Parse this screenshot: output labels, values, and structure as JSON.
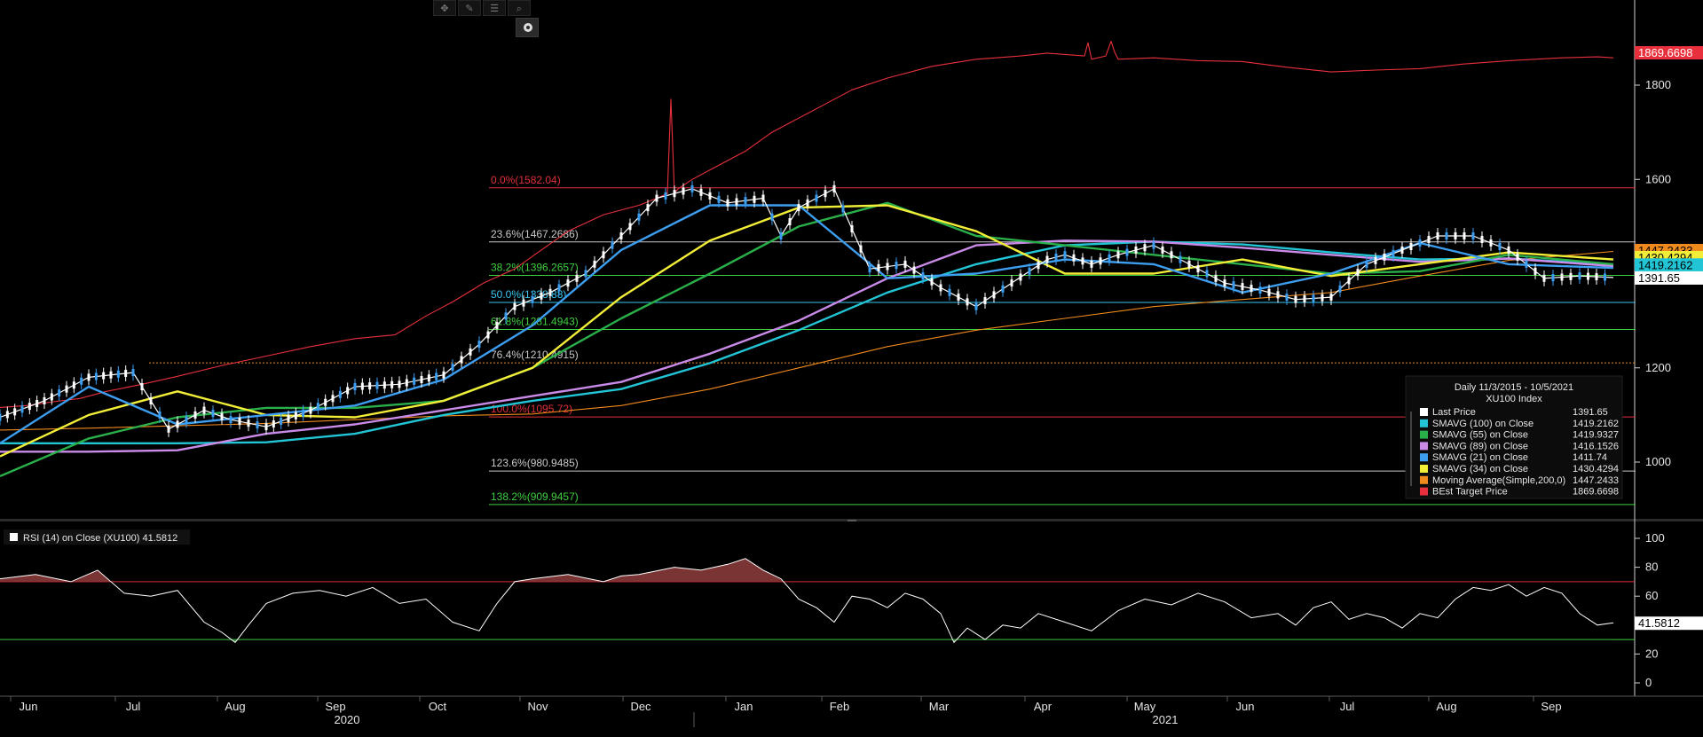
{
  "toolbar": {
    "icons": [
      "crosshair-icon",
      "draw-icon",
      "menu-icon",
      "zoom-icon"
    ],
    "glyphs": [
      "✥",
      "✎",
      "☰",
      "⌕"
    ],
    "camera_icon": "camera-icon"
  },
  "legend": {
    "title": "Daily 11/3/2015 - 10/5/2021",
    "subtitle": "XU100 Index",
    "items": [
      {
        "label": "Last Price",
        "value": "1391.65",
        "color": "#ffffff"
      },
      {
        "label": "SMAVG (100)  on Close",
        "value": "1419.2162",
        "color": "#22c5d6"
      },
      {
        "label": "SMAVG (55)  on Close",
        "value": "1419.9327",
        "color": "#2ab04a"
      },
      {
        "label": "SMAVG (89)  on Close",
        "value": "1416.1526",
        "color": "#c98ae8"
      },
      {
        "label": "SMAVG (21)  on Close",
        "value": "1411.74",
        "color": "#3d9ef0"
      },
      {
        "label": "SMAVG (34)  on Close",
        "value": "1430.4294",
        "color": "#f2ee38"
      },
      {
        "label": "Moving Average(Simple,200,0)",
        "value": "1447.2433",
        "color": "#f08a1c"
      },
      {
        "label": "BEst Target Price",
        "value": "1869.6698",
        "color": "#e8303c"
      }
    ]
  },
  "rsi_legend": {
    "label": "RSI (14)  on Close (XU100) 41.5812",
    "color": "#ffffff"
  },
  "chart_data": [
    {
      "type": "line",
      "title": "XU100 Index",
      "ylim": [
        900,
        1930
      ],
      "yticks": [
        1000,
        1200,
        1400,
        1600,
        1800
      ],
      "ytick_labels": [
        "1000",
        "1200",
        "1400",
        "1600",
        "1800"
      ],
      "x_month_labels": [
        "Jun",
        "Jul",
        "Aug",
        "Sep",
        "Oct",
        "Nov",
        "Dec",
        "Jan",
        "Feb",
        "Mar",
        "Apr",
        "May",
        "Jun",
        "Jul",
        "Aug",
        "Sep"
      ],
      "x_year_labels": [
        "2020",
        "2021"
      ],
      "fibonacci": [
        {
          "label": "0.0%(1582.04)",
          "value": 1582.04,
          "color": "#e0303a",
          "text_color": "#e0303a"
        },
        {
          "label": "23.6%(1467.2686)",
          "value": 1467.2686,
          "color": "#c8c8c8",
          "text_color": "#c8c8c8"
        },
        {
          "label": "38.2%(1396.2657)",
          "value": 1396.2657,
          "color": "#3fcf3f",
          "text_color": "#3fcf3f"
        },
        {
          "label": "50.0%(1338.88)",
          "value": 1338.88,
          "color": "#38c6ef",
          "text_color": "#38c6ef"
        },
        {
          "label": "61.8%(1281.4943)",
          "value": 1281.4943,
          "color": "#3fcf3f",
          "text_color": "#3fcf3f"
        },
        {
          "label": "76.4%(1210.4915)",
          "value": 1210.4915,
          "color": "#e0303a",
          "text_color": "#c8c8c8",
          "dashed": true
        },
        {
          "label": "100.0%(1095.72)",
          "value": 1095.72,
          "color": "#e0303a",
          "text_color": "#e0303a"
        },
        {
          "label": "123.6%(980.9485)",
          "value": 980.9485,
          "color": "#c8c8c8",
          "text_color": "#c8c8c8"
        },
        {
          "label": "138.2%(909.9457)",
          "value": 909.9457,
          "color": "#3fcf3f",
          "text_color": "#3fcf3f"
        }
      ],
      "right_tags": [
        {
          "label": "1869.6698",
          "value": 1869.67,
          "bg": "#e8303c",
          "fg": "#ffffff"
        },
        {
          "label": "1447.2433",
          "value": 1447.24,
          "bg": "#f08a1c",
          "fg": "#000000"
        },
        {
          "label": "1430.4294",
          "value": 1430.43,
          "bg": "#f2ee38",
          "fg": "#000000"
        },
        {
          "label": "1419.2162",
          "value": 1419.22,
          "bg": "#22c5d6",
          "fg": "#000000"
        },
        {
          "label": "1391.65",
          "value": 1391.65,
          "bg": "#ffffff",
          "fg": "#000000"
        }
      ],
      "series": [
        {
          "name": "BEst Target Price",
          "color": "#e8303c",
          "x": [
            0,
            30,
            60,
            90,
            120,
            160,
            200,
            250,
            300,
            350,
            400,
            445,
            480,
            510,
            545,
            580,
            610,
            640,
            680,
            720,
            740,
            752,
            756,
            760,
            764,
            780,
            800,
            840,
            870,
            900,
            930,
            960,
            1000,
            1050,
            1100,
            1150,
            1180,
            1222,
            1226,
            1230,
            1246,
            1252,
            1256,
            1260,
            1300,
            1350,
            1400,
            1450,
            1500,
            1550,
            1600,
            1650,
            1700,
            1760,
            1800,
            1818
          ],
          "values": [
            1116,
            1120,
            1128,
            1135,
            1150,
            1165,
            1182,
            1205,
            1225,
            1245,
            1262,
            1270,
            1310,
            1340,
            1380,
            1410,
            1450,
            1490,
            1525,
            1545,
            1560,
            1570,
            1770,
            1570,
            1580,
            1600,
            1620,
            1660,
            1700,
            1730,
            1760,
            1790,
            1815,
            1840,
            1855,
            1862,
            1868,
            1862,
            1890,
            1855,
            1862,
            1893,
            1870,
            1855,
            1858,
            1852,
            1850,
            1838,
            1828,
            1832,
            1835,
            1845,
            1852,
            1858,
            1860,
            1858
          ]
        },
        {
          "name": "Moving Average(Simple,200,0)",
          "color": "#f08a1c",
          "x": [
            0,
            100,
            200,
            300,
            400,
            500,
            600,
            700,
            800,
            900,
            1000,
            1100,
            1200,
            1300,
            1400,
            1500,
            1600,
            1700,
            1818
          ],
          "values": [
            1068,
            1072,
            1077,
            1082,
            1090,
            1098,
            1102,
            1120,
            1155,
            1200,
            1245,
            1280,
            1305,
            1330,
            1345,
            1360,
            1395,
            1428,
            1447
          ]
        },
        {
          "name": "SMAVG (100)  on Close",
          "color": "#22c5d6",
          "x": [
            0,
            100,
            200,
            300,
            400,
            500,
            600,
            700,
            800,
            900,
            1000,
            1100,
            1200,
            1300,
            1400,
            1500,
            1600,
            1700,
            1818
          ],
          "values": [
            1040,
            1040,
            1040,
            1042,
            1060,
            1100,
            1130,
            1155,
            1210,
            1280,
            1360,
            1420,
            1460,
            1468,
            1462,
            1445,
            1430,
            1432,
            1419
          ]
        },
        {
          "name": "SMAVG (89)  on Close",
          "color": "#c98ae8",
          "x": [
            0,
            100,
            200,
            300,
            400,
            500,
            600,
            700,
            800,
            900,
            1000,
            1100,
            1200,
            1300,
            1400,
            1500,
            1600,
            1700,
            1818
          ],
          "values": [
            1022,
            1022,
            1025,
            1060,
            1080,
            1110,
            1140,
            1170,
            1230,
            1300,
            1390,
            1460,
            1470,
            1468,
            1455,
            1440,
            1425,
            1432,
            1416
          ]
        },
        {
          "name": "SMAVG (55)  on Close",
          "color": "#2ab04a",
          "x": [
            0,
            100,
            200,
            300,
            400,
            500,
            600,
            700,
            800,
            900,
            1000,
            1100,
            1200,
            1300,
            1400,
            1500,
            1600,
            1700,
            1818
          ],
          "values": [
            970,
            1050,
            1095,
            1115,
            1115,
            1130,
            1200,
            1305,
            1400,
            1500,
            1550,
            1480,
            1460,
            1440,
            1420,
            1400,
            1405,
            1440,
            1420
          ]
        },
        {
          "name": "SMAVG (34)  on Close",
          "color": "#f2ee38",
          "x": [
            0,
            100,
            200,
            300,
            400,
            500,
            600,
            700,
            800,
            900,
            1000,
            1100,
            1200,
            1300,
            1400,
            1500,
            1600,
            1700,
            1818
          ],
          "values": [
            1012,
            1100,
            1150,
            1100,
            1095,
            1130,
            1200,
            1350,
            1470,
            1540,
            1545,
            1490,
            1400,
            1400,
            1430,
            1395,
            1420,
            1445,
            1430
          ]
        },
        {
          "name": "SMAVG (21)  on Close",
          "color": "#3d9ef0",
          "x": [
            0,
            100,
            200,
            300,
            400,
            500,
            600,
            700,
            800,
            900,
            1000,
            1100,
            1200,
            1300,
            1400,
            1500,
            1600,
            1700,
            1818
          ],
          "values": [
            1040,
            1160,
            1080,
            1100,
            1120,
            1175,
            1290,
            1450,
            1545,
            1545,
            1390,
            1400,
            1430,
            1420,
            1360,
            1400,
            1465,
            1420,
            1412
          ]
        },
        {
          "name": "Last Price",
          "color": "#ffffff",
          "x": [
            0,
            50,
            100,
            150,
            190,
            230,
            260,
            300,
            350,
            400,
            450,
            500,
            540,
            580,
            620,
            660,
            700,
            740,
            780,
            820,
            860,
            880,
            900,
            940,
            980,
            1020,
            1060,
            1100,
            1140,
            1180,
            1200,
            1230,
            1260,
            1300,
            1340,
            1380,
            1420,
            1460,
            1500,
            1540,
            1580,
            1620,
            1660,
            1700,
            1740,
            1780,
            1818
          ],
          "values": [
            1095,
            1130,
            1180,
            1190,
            1070,
            1110,
            1090,
            1075,
            1110,
            1160,
            1165,
            1185,
            1250,
            1330,
            1360,
            1400,
            1480,
            1560,
            1580,
            1550,
            1560,
            1480,
            1540,
            1580,
            1410,
            1420,
            1370,
            1330,
            1380,
            1430,
            1440,
            1420,
            1440,
            1460,
            1420,
            1380,
            1365,
            1345,
            1350,
            1420,
            1450,
            1480,
            1480,
            1450,
            1390,
            1395,
            1391.65
          ]
        }
      ]
    },
    {
      "type": "line",
      "title": "RSI (14)  on Close (XU100)",
      "ylim": [
        -10,
        108
      ],
      "yticks": [
        0,
        20,
        40,
        60,
        80,
        100
      ],
      "ytick_labels": [
        "0",
        "20",
        "40",
        "60",
        "80",
        "100"
      ],
      "levels": [
        {
          "value": 70,
          "color": "#e0303a"
        },
        {
          "value": 30,
          "color": "#3fcf3f"
        }
      ],
      "right_tags": [
        {
          "label": "41.5812",
          "value": 41.5812,
          "bg": "#ffffff",
          "fg": "#000000"
        }
      ],
      "series": [
        {
          "name": "RSI (14)",
          "color": "#ffffff",
          "x": [
            0,
            40,
            80,
            110,
            140,
            170,
            200,
            230,
            250,
            265,
            280,
            300,
            330,
            360,
            390,
            420,
            450,
            480,
            510,
            540,
            560,
            580,
            600,
            640,
            680,
            700,
            720,
            760,
            790,
            820,
            840,
            860,
            880,
            900,
            920,
            940,
            960,
            980,
            1000,
            1020,
            1040,
            1060,
            1075,
            1090,
            1110,
            1130,
            1150,
            1170,
            1200,
            1230,
            1260,
            1290,
            1320,
            1350,
            1380,
            1410,
            1440,
            1460,
            1480,
            1500,
            1520,
            1540,
            1560,
            1580,
            1600,
            1620,
            1640,
            1660,
            1680,
            1700,
            1720,
            1740,
            1760,
            1780,
            1800,
            1818
          ],
          "values": [
            72,
            75,
            70,
            78,
            62,
            60,
            64,
            42,
            35,
            28,
            40,
            55,
            62,
            64,
            60,
            66,
            55,
            58,
            42,
            36,
            55,
            70,
            72,
            75,
            70,
            74,
            75,
            80,
            78,
            82,
            86,
            78,
            72,
            58,
            52,
            42,
            60,
            58,
            52,
            62,
            58,
            48,
            28,
            38,
            30,
            40,
            38,
            48,
            42,
            36,
            50,
            58,
            54,
            62,
            56,
            45,
            48,
            40,
            52,
            56,
            44,
            48,
            45,
            38,
            48,
            45,
            58,
            66,
            64,
            68,
            60,
            66,
            62,
            48,
            40,
            41.58
          ]
        }
      ]
    }
  ]
}
